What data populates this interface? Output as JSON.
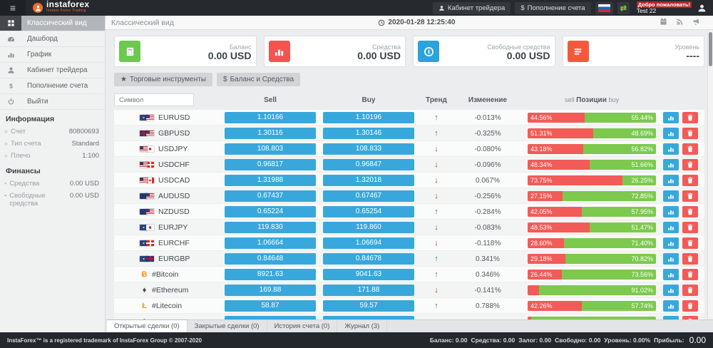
{
  "header": {
    "menu_icon": "≡",
    "brand": "instaforex",
    "tagline": "Instant Forex Trading",
    "trader_cabinet": "Кабинет трейдера",
    "deposit_dollar": "$",
    "deposit": "Пополнение счета",
    "swap_icon": "⇄",
    "welcome": "Добро пожаловать!",
    "username": "Test 22"
  },
  "sidebar": {
    "items": [
      {
        "label": "Классический вид",
        "icon": "grid-icon",
        "active": true
      },
      {
        "label": "Дашборд",
        "icon": "gauge-icon",
        "active": false
      },
      {
        "label": "График",
        "icon": "chart-icon",
        "active": false
      },
      {
        "label": "Кабинет трейдера",
        "icon": "user-icon",
        "active": false
      },
      {
        "label": "Пополнение счета",
        "icon": "dollar-icon",
        "active": false
      },
      {
        "label": "Выйти",
        "icon": "power-icon",
        "active": false
      }
    ],
    "info": {
      "title": "Информация",
      "rows": [
        {
          "label": "Счет",
          "value": "80800693"
        },
        {
          "label": "Тип счета",
          "value": "Standard"
        },
        {
          "label": "Плечо",
          "value": "1:100"
        }
      ]
    },
    "finance": {
      "title": "Финансы",
      "rows": [
        {
          "label": "Средства",
          "value": "0.00 USD"
        },
        {
          "label": "Свободные средства",
          "value": "0.00 USD"
        }
      ]
    }
  },
  "topbar": {
    "title": "Классический вид",
    "datetime": "2020-01-28 12:25:40"
  },
  "cards": [
    {
      "label": "Баланс",
      "value": "0.00 USD",
      "icon": "wallet-icon",
      "color": "#6cc84f"
    },
    {
      "label": "Средства",
      "value": "0.00 USD",
      "icon": "chart-icon",
      "color": "#f35452"
    },
    {
      "label": "Свободные средства",
      "value": "0.00 USD",
      "icon": "coin-icon",
      "color": "#2ba2dc"
    },
    {
      "label": "Уровень",
      "value": "----",
      "icon": "list-icon",
      "color": "#f4593b"
    }
  ],
  "toolbar": {
    "star": "★",
    "instruments": "Торговые инструменты",
    "dollar": "$",
    "balance": "Баланс и Средства"
  },
  "table": {
    "symbol_placeholder": "Символ",
    "headers": {
      "sell": "Sell",
      "buy": "Buy",
      "trend": "Тренд",
      "change": "Изменение",
      "pos_sell": "sell",
      "pos": "Позиции",
      "pos_buy": "buy"
    },
    "rows": [
      {
        "symbol": "EURUSD",
        "flags": [
          "eu",
          "us"
        ],
        "sell": "1.10166",
        "buy": "1.10196",
        "trend": "up",
        "change": "-0.013%",
        "sell_pct": 44.56,
        "buy_pct": 55.44,
        "sell_label": "44.56%",
        "buy_label": "55.44%"
      },
      {
        "symbol": "GBPUSD",
        "flags": [
          "gb",
          "us"
        ],
        "sell": "1.30116",
        "buy": "1.30146",
        "trend": "up",
        "change": "-0.325%",
        "sell_pct": 51.31,
        "buy_pct": 48.69,
        "sell_label": "51.31%",
        "buy_label": "48.69%"
      },
      {
        "symbol": "USDJPY",
        "flags": [
          "us",
          "jp"
        ],
        "sell": "108.803",
        "buy": "108.833",
        "trend": "down",
        "change": "-0.080%",
        "sell_pct": 43.18,
        "buy_pct": 56.82,
        "sell_label": "43.18%",
        "buy_label": "56.82%"
      },
      {
        "symbol": "USDCHF",
        "flags": [
          "us",
          "ch"
        ],
        "sell": "0.96817",
        "buy": "0.96847",
        "trend": "down",
        "change": "-0.096%",
        "sell_pct": 48.34,
        "buy_pct": 51.66,
        "sell_label": "48.34%",
        "buy_label": "51.66%"
      },
      {
        "symbol": "USDCAD",
        "flags": [
          "us",
          "ca"
        ],
        "sell": "1.31988",
        "buy": "1.32018",
        "trend": "down",
        "change": "0.067%",
        "sell_pct": 73.75,
        "buy_pct": 26.25,
        "sell_label": "73.75%",
        "buy_label": "26.25%"
      },
      {
        "symbol": "AUDUSD",
        "flags": [
          "au",
          "us"
        ],
        "sell": "0.67437",
        "buy": "0.67467",
        "trend": "down",
        "change": "-0.256%",
        "sell_pct": 27.15,
        "buy_pct": 72.85,
        "sell_label": "27.15%",
        "buy_label": "72.85%"
      },
      {
        "symbol": "NZDUSD",
        "flags": [
          "nz",
          "us"
        ],
        "sell": "0.65224",
        "buy": "0.65254",
        "trend": "up",
        "change": "-0.284%",
        "sell_pct": 42.05,
        "buy_pct": 57.95,
        "sell_label": "42.05%",
        "buy_label": "57.95%"
      },
      {
        "symbol": "EURJPY",
        "flags": [
          "eu",
          "jp"
        ],
        "sell": "119.830",
        "buy": "119.860",
        "trend": "down",
        "change": "-0.083%",
        "sell_pct": 48.53,
        "buy_pct": 51.47,
        "sell_label": "48.53%",
        "buy_label": "51.47%"
      },
      {
        "symbol": "EURCHF",
        "flags": [
          "eu",
          "ch"
        ],
        "sell": "1.06664",
        "buy": "1.06694",
        "trend": "down",
        "change": "-0.118%",
        "sell_pct": 28.6,
        "buy_pct": 71.4,
        "sell_label": "28.60%",
        "buy_label": "71.40%"
      },
      {
        "symbol": "EURGBP",
        "flags": [
          "eu",
          "gb"
        ],
        "sell": "0.84648",
        "buy": "0.84678",
        "trend": "up",
        "change": "0.341%",
        "sell_pct": 29.18,
        "buy_pct": 70.82,
        "sell_label": "29.18%",
        "buy_label": "70.82%"
      },
      {
        "symbol": "#Bitcoin",
        "crypto": {
          "glyph": "Ƀ",
          "color": "#f7931a"
        },
        "sell": "8921.63",
        "buy": "9041.63",
        "trend": "up",
        "change": "0.346%",
        "sell_pct": 26.44,
        "buy_pct": 73.56,
        "sell_label": "26.44%",
        "buy_label": "73.56%"
      },
      {
        "symbol": "#Ethereum",
        "crypto": {
          "glyph": "♦",
          "color": "#4a4a4a"
        },
        "sell": "169.88",
        "buy": "171.88",
        "trend": "down",
        "change": "-0.141%",
        "sell_pct": 8.98,
        "buy_pct": 91.02,
        "sell_label": "",
        "buy_label": "91.02%"
      },
      {
        "symbol": "#Litecoin",
        "crypto": {
          "glyph": "Ł",
          "color": "#e0a32e"
        },
        "sell": "58.87",
        "buy": "59.57",
        "trend": "up",
        "change": "0.788%",
        "sell_pct": 42.26,
        "buy_pct": 57.74,
        "sell_label": "42.26%",
        "buy_label": "57.74%"
      },
      {
        "symbol": "",
        "crypto": {
          "glyph": "◆",
          "color": "#2ba2dc"
        },
        "sell": "",
        "buy": "",
        "trend": "",
        "change": "",
        "sell_pct": 2.5,
        "buy_pct": 97.5,
        "sell_label": "",
        "buy_label": ""
      }
    ]
  },
  "tabs": [
    {
      "label": "Открытые сделки (0)",
      "active": true
    },
    {
      "label": "Закрытые сделки (0)",
      "active": false
    },
    {
      "label": "История счета (0)",
      "active": false
    },
    {
      "label": "Журнал (3)",
      "active": false
    }
  ],
  "footer": {
    "copyright": "InstaForex™ is a registered trademark of InstaForex Group © 2007-2020",
    "stats": [
      {
        "label": "Баланс:",
        "value": "0.00"
      },
      {
        "label": "Средства:",
        "value": "0.00"
      },
      {
        "label": "Залог:",
        "value": "0.00"
      },
      {
        "label": "Свободно:",
        "value": "0.00"
      },
      {
        "label": "Уровень:",
        "value": "0.00%"
      }
    ],
    "profit_label": "Прибыль:",
    "profit_value": "0.00"
  }
}
